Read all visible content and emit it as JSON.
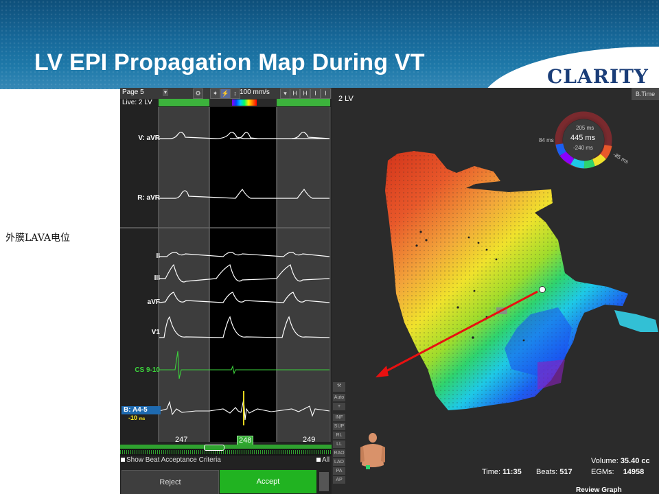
{
  "slide": {
    "title": "LV EPI Propagation Map During VT",
    "logo": "CLARITY",
    "side_note": "外膜LAVA电位"
  },
  "toolbar": {
    "page": "Page 5",
    "speed": "100 mm/s",
    "live": "Live: 2 LV"
  },
  "channels": {
    "avr_v": "V: aVR",
    "avr_r": "R: aVR",
    "ii": "II",
    "iii": "III",
    "avf": "aVF",
    "v1": "V1",
    "cs": "CS 9-10",
    "b": "B: A4-5",
    "b_value": "-10",
    "b_unit": "ms"
  },
  "beats": {
    "prev": "247",
    "current": "248",
    "next": "249"
  },
  "criteria": {
    "show_label": "Show Beat Acceptance Criteria",
    "all_label": "All"
  },
  "buttons": {
    "reject": "Reject",
    "accept": "Accept"
  },
  "map": {
    "title": "2 LV",
    "btime": "B.Time",
    "scale": {
      "top": "205 ms",
      "center": "445 ms",
      "bottom": "-240 ms",
      "left": "84 ms",
      "right": "-85 ms"
    },
    "side_buttons": [
      "Auto",
      "+",
      "INF",
      "SUP",
      "RL",
      "LL",
      "RAO",
      "LAO",
      "PA",
      "AP"
    ]
  },
  "stats": {
    "volume_label": "Volume:",
    "volume_value": "35.40 cc",
    "time_label": "Time:",
    "time_value": "11:35",
    "beats_label": "Beats:",
    "beats_value": "517",
    "egms_label": "EGMs:",
    "egms_value": "14958"
  },
  "review_graph": "Review Graph",
  "colors": {
    "accept_green": "#21b321",
    "annotation_arrow": "#e81010",
    "banner_blue": "#17699a"
  }
}
